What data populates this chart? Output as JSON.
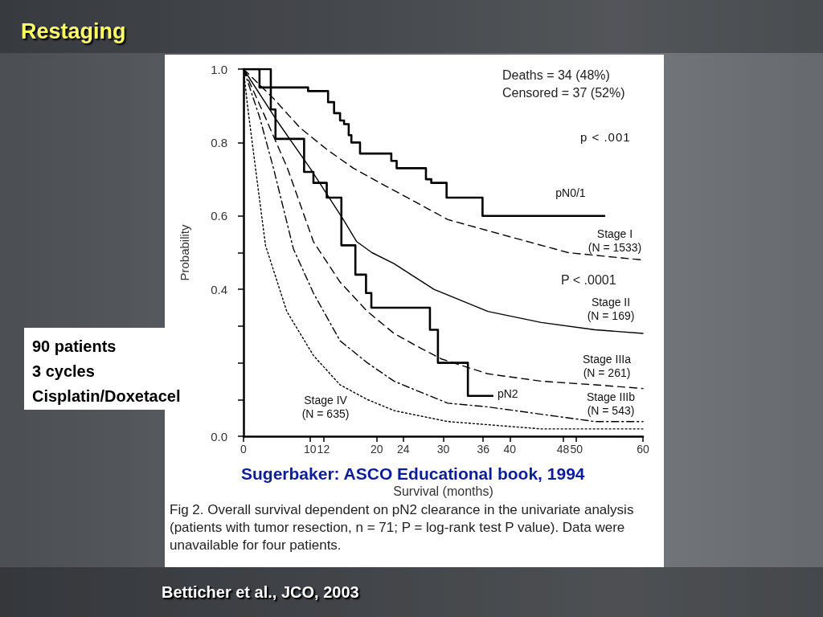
{
  "chart_data": {
    "type": "step",
    "title": "Restaging",
    "xlabel": "Survival (months)",
    "ylabel": "Probability",
    "xlim": [
      0,
      60
    ],
    "xticks": [
      0,
      10,
      12,
      20,
      24,
      30,
      36,
      40,
      48,
      50,
      60
    ],
    "ylim": [
      0,
      1
    ],
    "yticks": [
      {
        "value": 0,
        "label": "0.0"
      },
      {
        "value": 0.1,
        "label": null
      },
      {
        "value": 0.2,
        "label": null
      },
      {
        "value": 0.3,
        "label": null
      },
      0.4,
      {
        "value": 0.5,
        "label": null
      },
      0.6,
      0.8,
      {
        "value": 1,
        "label": "1.0"
      }
    ],
    "series": [
      {
        "name": "pN0/1",
        "color": "#000000",
        "line_style": "solid",
        "x": [
          0,
          4.1,
          9.7,
          12.7,
          13.6,
          14.5,
          15.1,
          15.8,
          16.2,
          17.5,
          22.2,
          23,
          27.4,
          28.2,
          30.5,
          35.9,
          54.2
        ],
        "values": [
          1,
          0.95,
          0.94,
          0.91,
          0.88,
          0.86,
          0.85,
          0.82,
          0.8,
          0.77,
          0.75,
          0.73,
          0.7,
          0.69,
          0.65,
          0.6,
          0.6
        ]
      },
      {
        "name": "pN2",
        "color": "#000000",
        "line_style": "solid",
        "x": [
          0,
          2.4,
          4.1,
          4.8,
          9.1,
          10.5,
          12.5,
          14.7,
          16.8,
          18.4,
          19.2,
          28,
          29.2,
          33.7,
          37.4
        ],
        "values": [
          1,
          0.95,
          0.89,
          0.81,
          0.72,
          0.69,
          0.65,
          0.52,
          0.44,
          0.39,
          0.35,
          0.29,
          0.2,
          0.11,
          0.11
        ]
      },
      {
        "name": "Stage I\n(N = 1533)",
        "type": "line",
        "color": "#000000",
        "line_style": "dashed",
        "x": [
          0,
          4.5,
          8.5,
          12.6,
          16.5,
          20.5,
          24.6,
          30.7,
          40.7,
          48.8,
          60
        ],
        "values": [
          1,
          0.92,
          0.84,
          0.78,
          0.73,
          0.69,
          0.65,
          0.59,
          0.54,
          0.5,
          0.48
        ]
      },
      {
        "name": "Stage II\n(N = 169)",
        "type": "line",
        "color": "#000000",
        "line_style": "solid",
        "x": [
          0,
          5,
          10,
          15,
          17,
          19.3,
          22.6,
          28.6,
          36.7,
          44.7,
          52.8,
          60
        ],
        "values": [
          1,
          0.86,
          0.73,
          0.59,
          0.53,
          0.5,
          0.47,
          0.4,
          0.34,
          0.31,
          0.29,
          0.28
        ]
      },
      {
        "name": "Stage IIIa\n(N = 261)",
        "type": "line",
        "color": "#000000",
        "line_style": "dashed",
        "x": [
          0,
          3,
          6.6,
          10.5,
          14.5,
          18.6,
          22.6,
          26.6,
          29.8,
          36.7,
          44.7,
          52.8,
          60
        ],
        "values": [
          1,
          0.88,
          0.73,
          0.53,
          0.42,
          0.34,
          0.28,
          0.24,
          0.21,
          0.17,
          0.15,
          0.14,
          0.13
        ]
      },
      {
        "name": "Stage IIIb\n(N = 543)",
        "type": "line",
        "color": "#000000",
        "line_style": "dashdot",
        "x": [
          0,
          2.4,
          4.5,
          7.5,
          10.5,
          14.5,
          18.6,
          22.6,
          26.6,
          30.7,
          36.7,
          44.7,
          52.8,
          60
        ],
        "values": [
          1,
          0.87,
          0.73,
          0.51,
          0.39,
          0.26,
          0.2,
          0.15,
          0.12,
          0.09,
          0.08,
          0.06,
          0.04,
          0.04
        ]
      },
      {
        "name": "Stage IV\n(N = 635)",
        "type": "line",
        "color": "#000000",
        "line_style": "dotted",
        "x": [
          0,
          0.6,
          1.8,
          3.3,
          6.5,
          10.5,
          14.5,
          18.6,
          22.6,
          30.7,
          44.7,
          60
        ],
        "values": [
          1,
          0.9,
          0.73,
          0.52,
          0.34,
          0.22,
          0.14,
          0.1,
          0.07,
          0.04,
          0.02,
          0.02
        ]
      }
    ],
    "annotations": [
      "Deaths = 34 (48%)",
      "Censored = 37 (52%)",
      "p < .001",
      "P < .0001",
      "90 patients\n3 cycles\nCisplatin/Doxetacel",
      "Sugerbaker: ASCO Educational book, 1994",
      "Fig 2.   Overall survival dependent on pN2 clearance in the univariate analysis (patients with tumor resection, n = 71; P = log-rank test P value). Data were unavailable for four patients.",
      "Betticher et al., JCO, 2003"
    ]
  }
}
